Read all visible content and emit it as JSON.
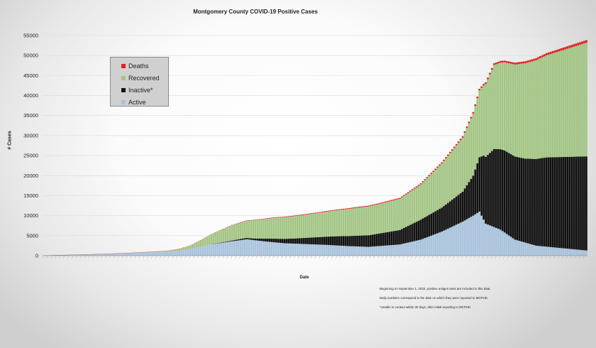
{
  "chart_data": {
    "type": "bar",
    "stacked": true,
    "title": "Montgomery County COVID-19 Positive Cases",
    "xlabel": "Date",
    "ylabel": "# Cases",
    "ylim": [
      0,
      55000
    ],
    "yticks": [
      0,
      5000,
      10000,
      15000,
      20000,
      25000,
      30000,
      35000,
      40000,
      45000,
      50000,
      55000
    ],
    "grid": true,
    "legend_position": "upper-left",
    "num_dates": 260,
    "series_order_bottom_to_top": [
      "Active",
      "Inactive*",
      "Recovered",
      "Deaths"
    ],
    "series": [
      {
        "name": "Deaths",
        "color": "#e02020",
        "keyframes": [
          [
            0,
            0
          ],
          [
            40,
            10
          ],
          [
            80,
            60
          ],
          [
            120,
            150
          ],
          [
            160,
            200
          ],
          [
            200,
            350
          ],
          [
            230,
            500
          ],
          [
            259,
            650
          ]
        ]
      },
      {
        "name": "Recovered",
        "color": "#a3c585",
        "keyframes": [
          [
            0,
            0
          ],
          [
            30,
            20
          ],
          [
            60,
            200
          ],
          [
            70,
            800
          ],
          [
            80,
            2500
          ],
          [
            90,
            3800
          ],
          [
            110,
            5200
          ],
          [
            130,
            6000
          ],
          [
            150,
            7000
          ],
          [
            170,
            7800
          ],
          [
            180,
            8800
          ],
          [
            190,
            11000
          ],
          [
            200,
            13500
          ],
          [
            210,
            17500
          ],
          [
            215,
            21000
          ],
          [
            225,
            23000
          ],
          [
            240,
            25500
          ],
          [
            259,
            28400
          ]
        ]
      },
      {
        "name": "Inactive*",
        "color": "#111111",
        "keyframes": [
          [
            0,
            0
          ],
          [
            80,
            0
          ],
          [
            90,
            200
          ],
          [
            100,
            400
          ],
          [
            110,
            900
          ],
          [
            120,
            1300
          ],
          [
            130,
            1800
          ],
          [
            140,
            2300
          ],
          [
            150,
            2700
          ],
          [
            160,
            3100
          ],
          [
            170,
            3600
          ],
          [
            180,
            5000
          ],
          [
            190,
            6000
          ],
          [
            200,
            7500
          ],
          [
            205,
            10000
          ],
          [
            210,
            16000
          ],
          [
            215,
            19500
          ],
          [
            220,
            20500
          ],
          [
            230,
            21000
          ],
          [
            240,
            22300
          ],
          [
            259,
            23500
          ]
        ]
      },
      {
        "name": "Active",
        "color": "#a9c3dd",
        "keyframes": [
          [
            0,
            50
          ],
          [
            20,
            300
          ],
          [
            40,
            600
          ],
          [
            55,
            900
          ],
          [
            65,
            1200
          ],
          [
            75,
            2200
          ],
          [
            80,
            2800
          ],
          [
            90,
            3600
          ],
          [
            97,
            4100
          ],
          [
            105,
            3600
          ],
          [
            115,
            3100
          ],
          [
            125,
            2900
          ],
          [
            135,
            2700
          ],
          [
            145,
            2400
          ],
          [
            155,
            2200
          ],
          [
            160,
            2400
          ],
          [
            170,
            2800
          ],
          [
            180,
            4000
          ],
          [
            190,
            6000
          ],
          [
            200,
            8500
          ],
          [
            205,
            10000
          ],
          [
            208,
            11000
          ],
          [
            211,
            8000
          ],
          [
            218,
            6500
          ],
          [
            225,
            4000
          ],
          [
            235,
            2500
          ],
          [
            245,
            2000
          ],
          [
            259,
            1300
          ]
        ]
      }
    ]
  },
  "notes": [
    "Beginning on September 1, 2020, positive antigen tests are included in this data.",
    "Daily numbers correspond to the date on which they were reported to MCPHD.",
    "*Unable to contact within 30 days, after initial reporting to MCPHD"
  ]
}
